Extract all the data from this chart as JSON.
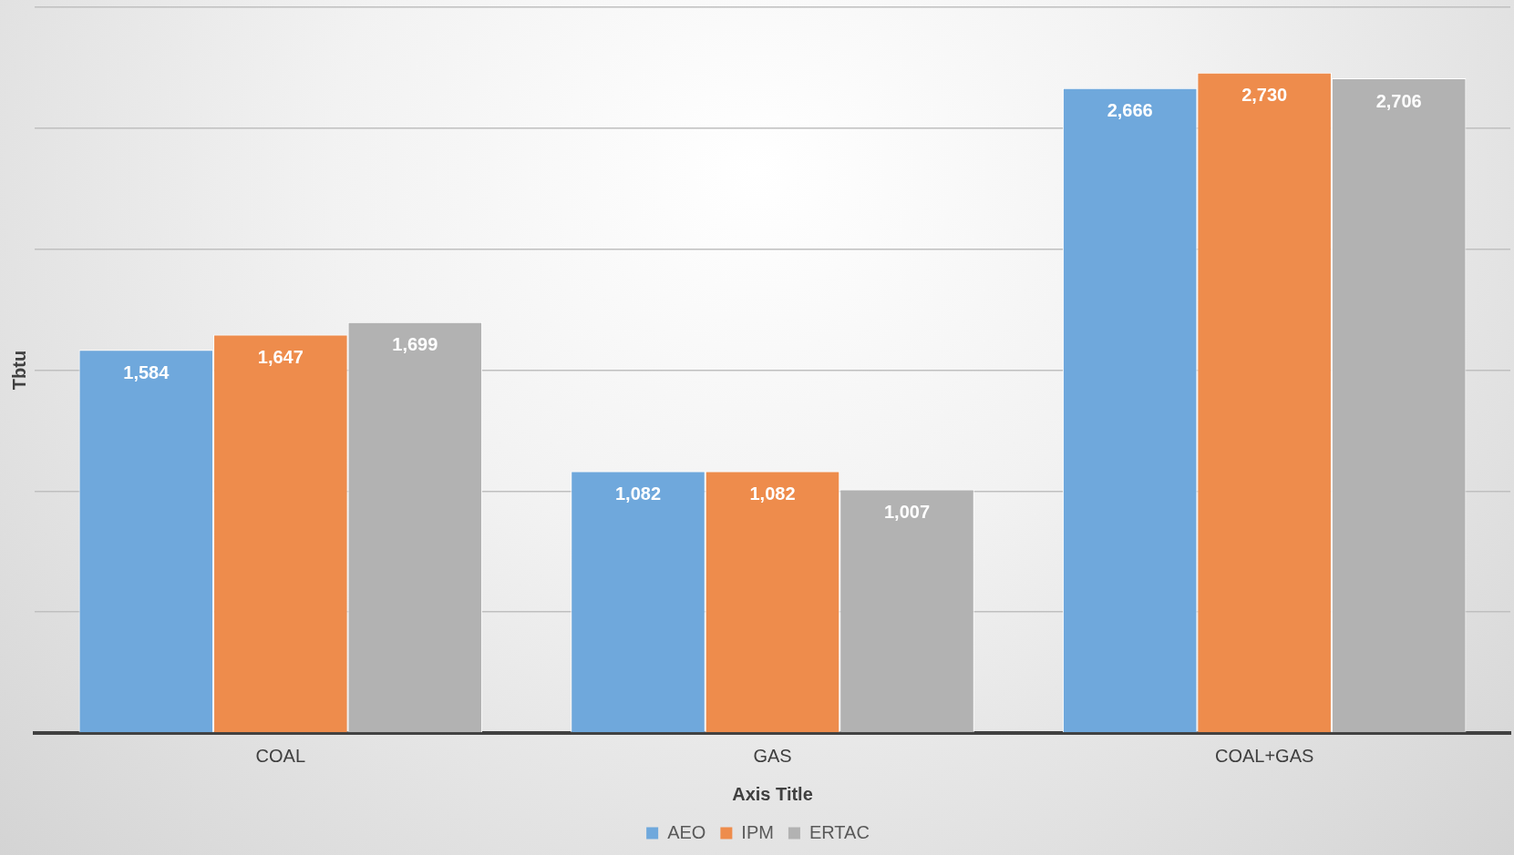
{
  "chart_data": {
    "type": "bar",
    "ylabel": "Tbtu",
    "xlabel": "Axis Title",
    "categories": [
      "COAL",
      "GAS",
      "COAL+GAS"
    ],
    "series": [
      {
        "name": "AEO",
        "color": "#6fa8dc",
        "values": [
          1584,
          1082,
          2666
        ],
        "value_labels": [
          "1,584",
          "1,082",
          "2,666"
        ]
      },
      {
        "name": "IPM",
        "color": "#ee8c4c",
        "values": [
          1647,
          1082,
          2730
        ],
        "value_labels": [
          "1,647",
          "1,082",
          "2,730"
        ]
      },
      {
        "name": "ERTAC",
        "color": "#b2b2b2",
        "values": [
          1699,
          1007,
          2706
        ],
        "value_labels": [
          "1,699",
          "1,007",
          "2,706"
        ]
      }
    ],
    "tick_labels": "x",
    "grid": "y",
    "legend": "bottom"
  }
}
